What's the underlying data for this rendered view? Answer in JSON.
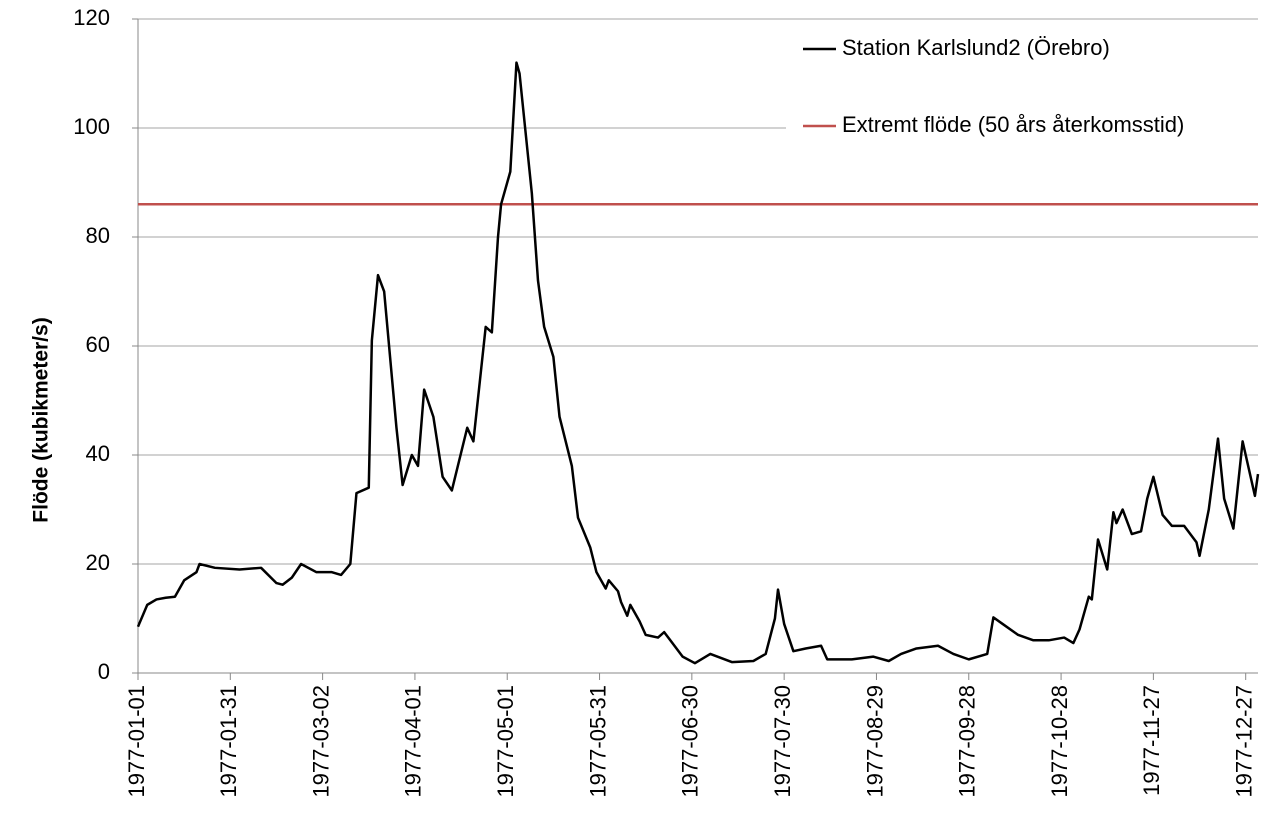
{
  "chart_data": {
    "type": "line",
    "y_label": "Flöde (kubikmeter/s)",
    "x": [
      "1977-01-01",
      "1977-01-04",
      "1977-01-07",
      "1977-01-10",
      "1977-01-13",
      "1977-01-16",
      "1977-01-20",
      "1977-01-21",
      "1977-01-26",
      "1977-02-03",
      "1977-02-10",
      "1977-02-15",
      "1977-02-17",
      "1977-02-20",
      "1977-02-23",
      "1977-02-28",
      "1977-03-05",
      "1977-03-08",
      "1977-03-11",
      "1977-03-13",
      "1977-03-17",
      "1977-03-18",
      "1977-03-20",
      "1977-03-22",
      "1977-03-26",
      "1977-03-28",
      "1977-03-31",
      "1977-04-02",
      "1977-04-04",
      "1977-04-07",
      "1977-04-10",
      "1977-04-13",
      "1977-04-18",
      "1977-04-20",
      "1977-04-24",
      "1977-04-26",
      "1977-04-28",
      "1977-04-29",
      "1977-05-02",
      "1977-05-04",
      "1977-05-05",
      "1977-05-09",
      "1977-05-11",
      "1977-05-13",
      "1977-05-16",
      "1977-05-18",
      "1977-05-22",
      "1977-05-24",
      "1977-05-28",
      "1977-05-30",
      "1977-06-02",
      "1977-06-03",
      "1977-06-06",
      "1977-06-07",
      "1977-06-09",
      "1977-06-10",
      "1977-06-13",
      "1977-06-15",
      "1977-06-19",
      "1977-06-21",
      "1977-06-23",
      "1977-06-27",
      "1977-07-01",
      "1977-07-06",
      "1977-07-13",
      "1977-07-20",
      "1977-07-24",
      "1977-07-27",
      "1977-07-28",
      "1977-07-30",
      "1977-08-02",
      "1977-08-06",
      "1977-08-11",
      "1977-08-13",
      "1977-08-21",
      "1977-08-28",
      "1977-09-02",
      "1977-09-06",
      "1977-09-11",
      "1977-09-18",
      "1977-09-23",
      "1977-09-28",
      "1977-10-04",
      "1977-10-06",
      "1977-10-09",
      "1977-10-14",
      "1977-10-19",
      "1977-10-24",
      "1977-10-29",
      "1977-11-01",
      "1977-11-03",
      "1977-11-06",
      "1977-11-07",
      "1977-11-09",
      "1977-11-12",
      "1977-11-14",
      "1977-11-15",
      "1977-11-17",
      "1977-11-20",
      "1977-11-23",
      "1977-11-25",
      "1977-11-27",
      "1977-11-30",
      "1977-12-03",
      "1977-12-07",
      "1977-12-11",
      "1977-12-12",
      "1977-12-15",
      "1977-12-18",
      "1977-12-20",
      "1977-12-23",
      "1977-12-26",
      "1977-12-30",
      "1977-12-31"
    ],
    "series": [
      {
        "name": "Station Karlslund2 (Örebro)",
        "color": "#000000",
        "values": [
          8.5,
          12.5,
          13.5,
          13.8,
          14,
          17,
          18.5,
          20,
          19.3,
          19,
          19.3,
          16.5,
          16.2,
          17.5,
          20,
          18.5,
          18.5,
          18,
          20,
          33,
          34,
          61,
          73,
          70,
          45,
          34.5,
          40,
          38,
          52,
          47,
          36,
          33.5,
          45,
          42.5,
          63.5,
          62.5,
          80,
          86,
          92,
          112,
          110,
          88,
          72,
          63.5,
          58,
          47,
          38,
          28.5,
          23,
          18.5,
          15.5,
          17,
          15,
          13,
          10.5,
          12.5,
          9.5,
          7,
          6.5,
          7.5,
          6,
          3,
          1.8,
          3.5,
          2,
          2.2,
          3.5,
          10,
          15.3,
          9,
          4,
          4.5,
          5,
          2.5,
          2.5,
          3,
          2.2,
          3.5,
          4.5,
          5,
          3.5,
          2.5,
          3.5,
          10.2,
          9,
          7,
          6,
          6,
          6.5,
          5.5,
          8,
          14,
          13.5,
          24.5,
          19,
          29.5,
          27.5,
          30,
          25.5,
          26,
          32,
          36,
          29,
          27,
          27,
          24,
          21.5,
          30,
          43,
          32,
          26.5,
          42.5,
          32.5,
          36.5
        ]
      }
    ],
    "reference_line": {
      "name": "Extremt flöde (50 års återkomsstid)",
      "color": "#c0504d",
      "value": 86
    },
    "xlim": [
      "1977-01-01",
      "1977-12-31"
    ],
    "xticks": [
      "1977-01-01",
      "1977-01-31",
      "1977-03-02",
      "1977-04-01",
      "1977-05-01",
      "1977-05-31",
      "1977-06-30",
      "1977-07-30",
      "1977-08-29",
      "1977-09-28",
      "1977-10-28",
      "1977-11-27",
      "1977-12-27"
    ],
    "ylim": [
      0,
      120
    ],
    "yticks": [
      0,
      20,
      40,
      60,
      80,
      100,
      120
    ],
    "grid": true
  }
}
